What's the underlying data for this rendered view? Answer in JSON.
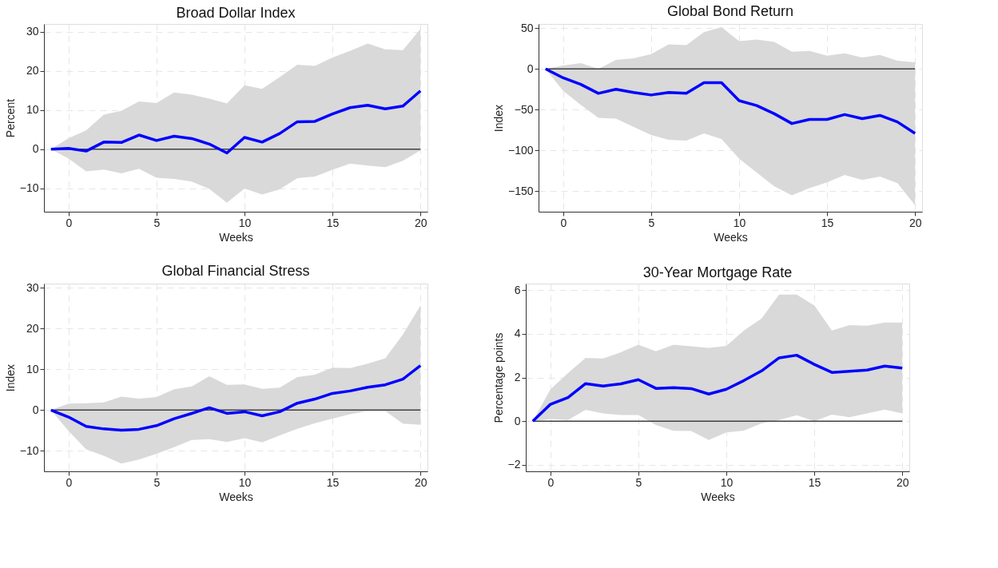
{
  "chart_data": [
    {
      "type": "line",
      "title": "Broad Dollar Index",
      "xlabel": "Weeks",
      "ylabel": "Percent",
      "x": [
        -1,
        0,
        1,
        2,
        3,
        4,
        5,
        6,
        7,
        8,
        9,
        10,
        11,
        12,
        13,
        14,
        15,
        16,
        17,
        18,
        19,
        20
      ],
      "series": [
        {
          "color": "#0000ff",
          "values": [
            0,
            0.2,
            -0.5,
            1.8,
            1.7,
            3.6,
            2.2,
            3.3,
            2.7,
            1.3,
            -1,
            3,
            1.8,
            4,
            7,
            7.1,
            9,
            10.6,
            11.2,
            10.3,
            11,
            14.9
          ],
          "upper": [
            0,
            2.8,
            4.8,
            8.8,
            9.8,
            12.2,
            11.8,
            14.5,
            13.9,
            12.9,
            11.7,
            16.3,
            15.4,
            18.4,
            21.6,
            21.3,
            23.4,
            25.1,
            27,
            25.5,
            25.3,
            30.7
          ],
          "lower": [
            0,
            -2.4,
            -5.7,
            -5.2,
            -6.2,
            -5,
            -7.3,
            -7.6,
            -8.3,
            -10.2,
            -13.7,
            -10.1,
            -11.6,
            -10.3,
            -7.4,
            -7,
            -5.3,
            -3.7,
            -4.2,
            -4.6,
            -3,
            -0.3
          ]
        }
      ],
      "xlim": [
        -1.4,
        20.4
      ],
      "xticks": [
        0,
        5,
        10,
        15,
        20
      ],
      "ylim": [
        -16,
        32
      ],
      "yticks": [
        -10,
        0,
        10,
        20,
        30
      ],
      "ref_lines": [
        {
          "axis": "y",
          "value": 0,
          "color": "#404040"
        }
      ],
      "grid": true,
      "marker": "none",
      "line_style": "solid"
    },
    {
      "type": "line",
      "title": "Global Bond Return",
      "xlabel": "Weeks",
      "ylabel": "Index",
      "x": [
        -1,
        0,
        1,
        2,
        3,
        4,
        5,
        6,
        7,
        8,
        9,
        10,
        11,
        12,
        13,
        14,
        15,
        16,
        17,
        18,
        19,
        20
      ],
      "series": [
        {
          "color": "#0000ff",
          "values": [
            0,
            -11,
            -19,
            -30,
            -25,
            -29,
            -32,
            -29,
            -30,
            -17,
            -17,
            -39,
            -45,
            -55,
            -67,
            -62,
            -62,
            -56,
            -61,
            -57,
            -65,
            -79
          ],
          "upper": [
            0,
            4,
            7,
            0,
            11,
            13,
            18,
            30,
            29,
            45,
            51,
            34,
            36,
            33,
            21,
            22,
            16,
            19,
            14,
            17,
            10,
            8
          ],
          "lower": [
            0,
            -27,
            -44,
            -60,
            -61,
            -71,
            -81,
            -87,
            -88,
            -79,
            -86,
            -110,
            -127,
            -144,
            -155,
            -146,
            -139,
            -130,
            -136,
            -132,
            -140,
            -167
          ]
        }
      ],
      "xlim": [
        -1.4,
        20.4
      ],
      "xticks": [
        0,
        5,
        10,
        15,
        20
      ],
      "ylim": [
        -175,
        55
      ],
      "yticks": [
        -150,
        -100,
        -50,
        0,
        50
      ],
      "ref_lines": [
        {
          "axis": "y",
          "value": 0,
          "color": "#404040"
        }
      ],
      "grid": true,
      "marker": "none",
      "line_style": "solid"
    },
    {
      "type": "line",
      "title": "Global Financial Stress",
      "xlabel": "Weeks",
      "ylabel": "Index",
      "x": [
        -1,
        0,
        1,
        2,
        3,
        4,
        5,
        6,
        7,
        8,
        9,
        10,
        11,
        12,
        13,
        14,
        15,
        16,
        17,
        18,
        19,
        20
      ],
      "series": [
        {
          "color": "#0000ff",
          "values": [
            0,
            -1.7,
            -4,
            -4.6,
            -4.9,
            -4.7,
            -3.8,
            -2.1,
            -0.8,
            0.6,
            -0.8,
            -0.4,
            -1.4,
            -0.4,
            1.7,
            2.7,
            4.1,
            4.7,
            5.6,
            6.2,
            7.6,
            10.9
          ],
          "upper": [
            0,
            1.6,
            1.7,
            1.9,
            3.3,
            2.8,
            3.2,
            5.1,
            5.8,
            8.3,
            6.2,
            6.3,
            5.2,
            5.5,
            8.1,
            8.7,
            10.4,
            10.3,
            11.4,
            12.7,
            18.5,
            25.6
          ],
          "lower": [
            0,
            -5.1,
            -9.6,
            -11.2,
            -13.1,
            -12.1,
            -10.7,
            -9.1,
            -7.3,
            -7.1,
            -7.8,
            -6.9,
            -7.9,
            -6.2,
            -4.6,
            -3.2,
            -2.1,
            -1,
            -0.2,
            -0.2,
            -3.3,
            -3.6
          ]
        }
      ],
      "xlim": [
        -1.4,
        20.4
      ],
      "xticks": [
        0,
        5,
        10,
        15,
        20
      ],
      "ylim": [
        -15,
        31
      ],
      "yticks": [
        -10,
        0,
        10,
        20,
        30
      ],
      "ref_lines": [
        {
          "axis": "y",
          "value": 0,
          "color": "#404040"
        }
      ],
      "grid": true,
      "marker": "none",
      "line_style": "solid"
    },
    {
      "type": "line",
      "title": "30-Year Mortgage Rate",
      "xlabel": "Weeks",
      "ylabel": "Percentage points",
      "x": [
        -1,
        0,
        1,
        2,
        3,
        4,
        5,
        6,
        7,
        8,
        9,
        10,
        11,
        12,
        13,
        14,
        15,
        16,
        17,
        18,
        19,
        20
      ],
      "series": [
        {
          "color": "#0000ff",
          "values": [
            0,
            0.77,
            1.08,
            1.72,
            1.61,
            1.71,
            1.9,
            1.5,
            1.53,
            1.49,
            1.24,
            1.46,
            1.86,
            2.3,
            2.9,
            3.02,
            2.6,
            2.23,
            2.28,
            2.34,
            2.52,
            2.43
          ],
          "upper": [
            0,
            1.45,
            2.2,
            2.9,
            2.87,
            3.15,
            3.5,
            3.2,
            3.5,
            3.43,
            3.35,
            3.45,
            4.15,
            4.7,
            5.8,
            5.8,
            5.3,
            4.15,
            4.4,
            4.37,
            4.52,
            4.52
          ],
          "lower": [
            0,
            0.1,
            0.05,
            0.52,
            0.35,
            0.28,
            0.28,
            -0.18,
            -0.44,
            -0.45,
            -0.86,
            -0.52,
            -0.43,
            -0.1,
            0.05,
            0.27,
            0,
            0.3,
            0.18,
            0.35,
            0.53,
            0.35
          ]
        }
      ],
      "xlim": [
        -1.4,
        20.4
      ],
      "xticks": [
        0,
        5,
        10,
        15,
        20
      ],
      "ylim": [
        -2.3,
        6.3
      ],
      "yticks": [
        -2,
        0,
        2,
        4,
        6
      ],
      "ref_lines": [
        {
          "axis": "y",
          "value": 0,
          "color": "#404040"
        }
      ],
      "grid": true,
      "marker": "none",
      "line_style": "solid"
    }
  ]
}
